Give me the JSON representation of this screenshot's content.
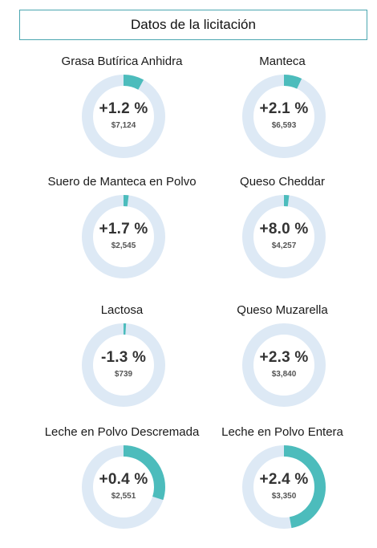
{
  "header": {
    "title": "Datos de la licitación"
  },
  "colors": {
    "track": "#dde9f5",
    "accent": "#4cbcbc",
    "border": "#4aa6b0"
  },
  "cards": [
    {
      "name": "Grasa Butírica Anhidra",
      "change": "+1.2 %",
      "price": "$7,124",
      "fill_fraction": 0.08
    },
    {
      "name": "Manteca",
      "change": "+2.1 %",
      "price": "$6,593",
      "fill_fraction": 0.07
    },
    {
      "name": "Suero de Manteca en Polvo",
      "change": "+1.7 %",
      "price": "$2,545",
      "fill_fraction": 0.02
    },
    {
      "name": "Queso Cheddar",
      "change": "+8.0 %",
      "price": "$4,257",
      "fill_fraction": 0.02
    },
    {
      "name": "Lactosa",
      "change": "-1.3 %",
      "price": "$739",
      "fill_fraction": 0.01
    },
    {
      "name": "Queso Muzarella",
      "change": "+2.3 %",
      "price": "$3,840",
      "fill_fraction": 0.0
    },
    {
      "name": "Leche en Polvo Descremada",
      "change": "+0.4 %",
      "price": "$2,551",
      "fill_fraction": 0.3
    },
    {
      "name": "Leche en Polvo Entera",
      "change": "+2.4 %",
      "price": "$3,350",
      "fill_fraction": 0.47
    }
  ]
}
